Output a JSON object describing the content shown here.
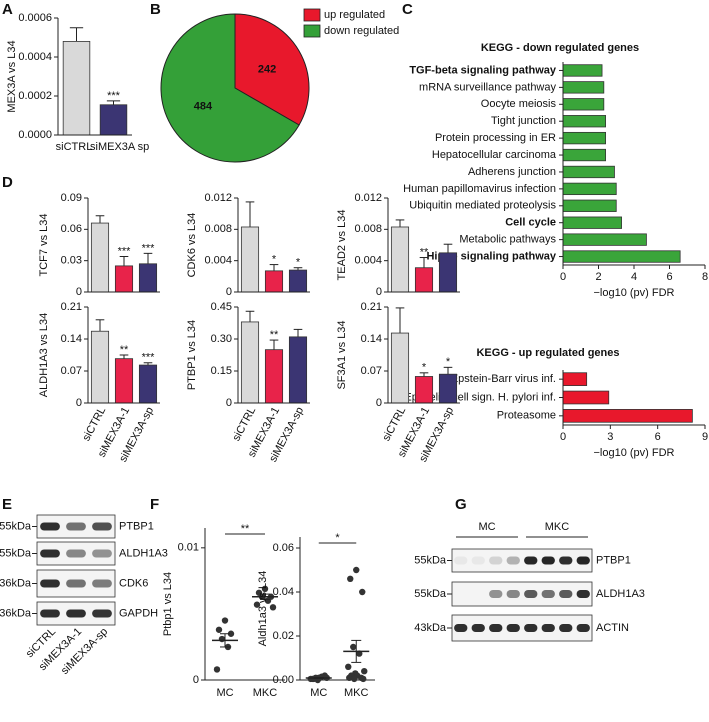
{
  "panel_letters": [
    "A",
    "B",
    "C",
    "D",
    "E",
    "F",
    "G"
  ],
  "chart_data": [
    {
      "type": "bar",
      "y_label": "MEX3A vs L34",
      "categories": [
        "siCTRL",
        "siMEX3A sp"
      ],
      "values": [
        0.00048,
        0.000155
      ],
      "errors": [
        7e-05,
        2e-05
      ],
      "significance": [
        null,
        "***"
      ],
      "colors": [
        "#d9d9d9",
        "#3b3573"
      ],
      "ylim": [
        0,
        0.0006
      ],
      "yticks": [
        {
          "value": 0,
          "label": "0.0000"
        },
        {
          "value": 0.0002,
          "label": "0.0002"
        },
        {
          "value": 0.0004,
          "label": "0.0004"
        },
        {
          "value": 0.0006,
          "label": "0.0006"
        }
      ]
    },
    {
      "type": "pie",
      "categories": [
        "up regulated",
        "down regulated"
      ],
      "values": [
        242,
        484
      ],
      "colors": [
        "#e8182c",
        "#34a038"
      ],
      "legend": "upper right"
    },
    {
      "type": "barh",
      "title": "KEGG - down regulated genes",
      "x_label": "−log10 (pv) FDR",
      "color": "#3aa53a",
      "categories": [
        "TGF-beta signaling pathway",
        "mRNA surveillance pathway",
        "Oocyte meiosis",
        "Tight junction",
        "Protein processing in ER",
        "Hepatocellular carcinoma",
        "Adherens junction",
        "Human papillomavirus infection",
        "Ubiquitin mediated proteolysis",
        "Cell cycle",
        "Metabolic pathways",
        "Hippo signaling pathway"
      ],
      "bold": [
        true,
        false,
        false,
        false,
        false,
        false,
        false,
        false,
        false,
        true,
        false,
        true
      ],
      "values": [
        2.2,
        2.3,
        2.3,
        2.4,
        2.4,
        2.4,
        2.9,
        3.0,
        3.0,
        3.3,
        4.7,
        6.6
      ],
      "xlim": [
        0,
        8
      ],
      "xticks": [
        0,
        2,
        4,
        6,
        8
      ]
    },
    {
      "type": "barh",
      "title": "KEGG - up regulated genes",
      "x_label": "−log10 (pv) FDR",
      "color": "#e8182c",
      "categories": [
        "Epstein-Barr virus inf.",
        "Epithelial cell sign. H. pylori inf.",
        "Proteasome"
      ],
      "values": [
        1.5,
        2.9,
        8.2
      ],
      "xlim": [
        0,
        9
      ],
      "xticks": [
        0,
        3,
        6,
        9
      ]
    },
    {
      "type": "bar",
      "y_label": "TCF7 vs L34",
      "categories": [
        null,
        null,
        null
      ],
      "values": [
        0.066,
        0.025,
        0.027
      ],
      "errors": [
        0.007,
        0.009,
        0.01
      ],
      "significance": [
        null,
        "***",
        "***"
      ],
      "colors": [
        "#d9d9d9",
        "#e8234a",
        "#3b3573"
      ],
      "ylim": [
        0,
        0.09
      ],
      "yticks": [
        0,
        0.03,
        0.06,
        0.09
      ]
    },
    {
      "type": "bar",
      "y_label": "CDK6 vs L34",
      "categories": [
        null,
        null,
        null
      ],
      "values": [
        0.0083,
        0.0027,
        0.0028
      ],
      "errors": [
        0.0032,
        0.0008,
        0.0003
      ],
      "significance": [
        null,
        "*",
        "*"
      ],
      "colors": [
        "#d9d9d9",
        "#e8234a",
        "#3b3573"
      ],
      "ylim": [
        0,
        0.012
      ],
      "yticks": [
        0,
        0.004,
        0.008,
        0.012
      ]
    },
    {
      "type": "bar",
      "y_label": "TEAD2 vs L34",
      "categories": [
        null,
        null,
        null
      ],
      "values": [
        0.0083,
        0.0031,
        0.005
      ],
      "errors": [
        0.0009,
        0.0013,
        0.0011
      ],
      "significance": [
        null,
        "**",
        null
      ],
      "colors": [
        "#d9d9d9",
        "#e8234a",
        "#3b3573"
      ],
      "ylim": [
        0,
        0.012
      ],
      "yticks": [
        0,
        0.004,
        0.008,
        0.012
      ]
    },
    {
      "type": "bar",
      "y_label": "ALDH1A3 vs L34",
      "categories": [
        "siCTRL",
        "siMEX3A-1",
        "siMEX3A-sp"
      ],
      "values": [
        0.157,
        0.097,
        0.083
      ],
      "errors": [
        0.025,
        0.008,
        0.005
      ],
      "significance": [
        null,
        "**",
        "***"
      ],
      "colors": [
        "#d9d9d9",
        "#e8234a",
        "#3b3573"
      ],
      "ylim": [
        0,
        0.21
      ],
      "yticks": [
        0,
        0.07,
        0.14,
        0.21
      ]
    },
    {
      "type": "bar",
      "y_label": "PTBP1 vs L34",
      "categories": [
        "siCTRL",
        "siMEX3A-1",
        "siMEX3A-sp"
      ],
      "values": [
        0.38,
        0.25,
        0.31
      ],
      "errors": [
        0.05,
        0.045,
        0.035
      ],
      "significance": [
        null,
        "**",
        null
      ],
      "colors": [
        "#d9d9d9",
        "#e8234a",
        "#3b3573"
      ],
      "ylim": [
        0,
        0.45
      ],
      "yticks": [
        0,
        0.15,
        {
          "value": 0.3,
          "label": "0.30"
        },
        0.45
      ]
    },
    {
      "type": "bar",
      "y_label": "SF3A1 vs L34",
      "categories": [
        "siCTRL",
        "siMEX3A-1",
        "siMEX3A-sp"
      ],
      "values": [
        0.153,
        0.058,
        0.063
      ],
      "errors": [
        0.055,
        0.008,
        0.015
      ],
      "significance": [
        null,
        "*",
        "*"
      ],
      "colors": [
        "#d9d9d9",
        "#e8234a",
        "#3b3573"
      ],
      "ylim": [
        0,
        0.21
      ],
      "yticks": [
        0,
        0.07,
        0.14,
        0.21
      ]
    },
    {
      "type": "strip",
      "y_label": "Ptbp1 vs L34",
      "categories": [
        "MC",
        "MKC"
      ],
      "significance": "**",
      "color": "#333333",
      "points": [
        [
          0.0045,
          0.0038,
          0.0035,
          0.0031,
          0.0025,
          0.0008
        ],
        [
          0.0069,
          0.0066,
          0.0063,
          0.0063,
          0.006,
          0.0057,
          0.0055
        ]
      ],
      "means": [
        0.003,
        0.0063
      ],
      "sems": [
        0.0005,
        0.0002
      ],
      "ylim": [
        0,
        0.0115
      ],
      "yticks": [
        0,
        0.01
      ]
    },
    {
      "type": "strip",
      "y_label": "Aldh1a3 vs L34",
      "categories": [
        "MC",
        "MKC"
      ],
      "significance": "*",
      "color": "#333333",
      "points": [
        [
          0.001,
          0.0005,
          0.002,
          0.001,
          0.0015,
          0.0005,
          0.001,
          0,
          0.001,
          0.0005
        ],
        [
          0.05,
          0.046,
          0.04,
          0.015,
          0.012,
          0.006,
          0.004,
          0.003,
          0.002,
          0.002,
          0.001,
          0.001,
          0.0005,
          0.0005
        ]
      ],
      "means": [
        0.0009,
        0.013
      ],
      "sems": [
        0.0002,
        0.005
      ],
      "ylim": [
        0,
        0.065
      ],
      "yticks": [
        {
          "value": 0,
          "label": "0.00"
        },
        0.02,
        0.04,
        0.06
      ]
    }
  ],
  "blots": [
    {
      "lane_labels": [
        "siCTRL",
        "siMEX3A-1",
        "siMEX3A-sp"
      ],
      "rows": [
        {
          "marker": "55kDa",
          "protein": "PTBP1"
        },
        {
          "marker": "55kDa",
          "protein": "ALDH1A3"
        },
        {
          "marker": "36kDa",
          "protein": "CDK6"
        },
        {
          "marker": "36kDa",
          "protein": "GAPDH"
        }
      ]
    },
    {
      "group_labels": [
        "MC",
        "MKC"
      ],
      "rows": [
        {
          "marker": "55kDa",
          "protein": "PTBP1"
        },
        {
          "marker": "55kDa",
          "protein": "ALDH1A3"
        },
        {
          "marker": "43kDa",
          "protein": "ACTIN"
        }
      ]
    }
  ]
}
